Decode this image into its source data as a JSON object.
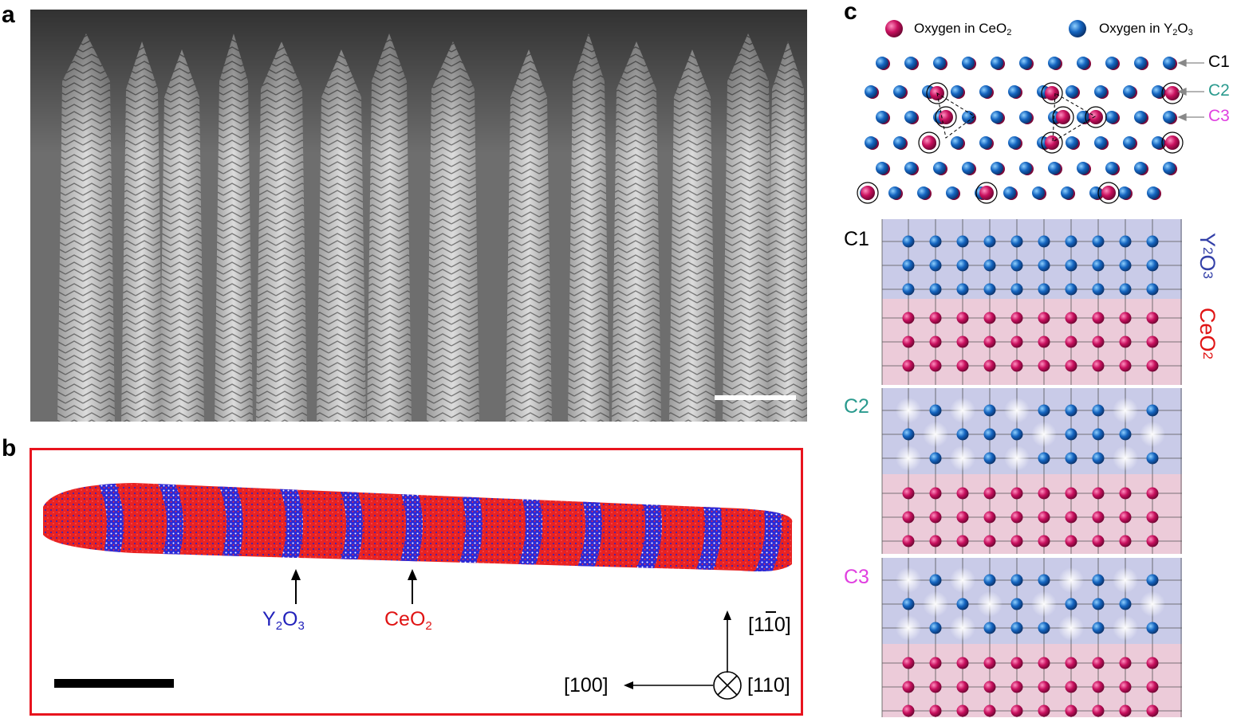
{
  "panels": {
    "a": {
      "letter": "a"
    },
    "b": {
      "letter": "b",
      "labels": {
        "y2o3": {
          "main": "Y",
          "sub1": "2",
          "mid": "O",
          "sub2": "3"
        },
        "ceo2": {
          "main": "CeO",
          "sub": "2"
        }
      },
      "axes": {
        "up": "[110]",
        "left": "[100]",
        "out": "[110]"
      }
    },
    "c": {
      "letter": "c",
      "legend": {
        "ceo2": {
          "prefix": "Oxygen in CeO",
          "sub": "2"
        },
        "y2o3": {
          "prefix": "Oxygen in Y",
          "sub1": "2",
          "mid": "O",
          "sub2": "3"
        }
      },
      "planes": [
        "C1",
        "C2",
        "C3"
      ],
      "layer_labels": {
        "y2o3": {
          "a": "Y",
          "b": "2",
          "c": "O",
          "d": "3"
        },
        "ceo2": {
          "a": "CeO",
          "b": "2"
        }
      }
    }
  },
  "colors": {
    "ceo2_oxygen": "#c8105e",
    "y2o3_oxygen": "#1565c0",
    "y2o3_label": "#3340a8",
    "ceo2_label": "#e01414",
    "c2": "#2a9a8e",
    "c3": "#e040e0",
    "frame_b": "#e8141e"
  }
}
